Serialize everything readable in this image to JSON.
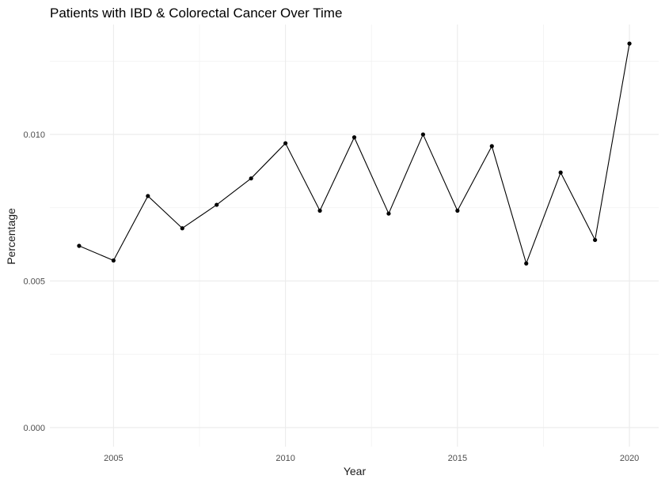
{
  "chart_data": {
    "type": "line",
    "title": "Patients with IBD & Colorectal Cancer Over Time",
    "xlabel": "Year",
    "ylabel": "Percentage",
    "x": [
      2004,
      2005,
      2006,
      2007,
      2008,
      2009,
      2010,
      2011,
      2012,
      2013,
      2014,
      2015,
      2016,
      2017,
      2018,
      2019,
      2020
    ],
    "series": [
      {
        "values": [
          0.0062,
          0.0057,
          0.0079,
          0.0068,
          0.0076,
          0.0085,
          0.0097,
          0.0074,
          0.0099,
          0.0073,
          0.01,
          0.0074,
          0.0096,
          0.0056,
          0.0087,
          0.0064,
          0.0131
        ]
      }
    ],
    "xlim": [
      2003.15,
      2020.85
    ],
    "ylim": [
      -0.00065,
      0.01375
    ],
    "x_ticks": [
      2005,
      2010,
      2015,
      2020
    ],
    "x_tick_labels": [
      "2005",
      "2010",
      "2015",
      "2020"
    ],
    "x_minor_ticks": [
      2007.5,
      2012.5,
      2017.5
    ],
    "y_ticks": [
      0.0,
      0.005,
      0.01
    ],
    "y_tick_labels": [
      "0.000",
      "0.005",
      "0.010"
    ],
    "y_minor_ticks": [
      0.0025,
      0.0075,
      0.0125
    ],
    "grid": true,
    "legend": "none",
    "colors": {
      "line": "#000000",
      "point": "#000000",
      "grid_major": "#ebebeb",
      "grid_minor": "#f2f2f2"
    }
  }
}
